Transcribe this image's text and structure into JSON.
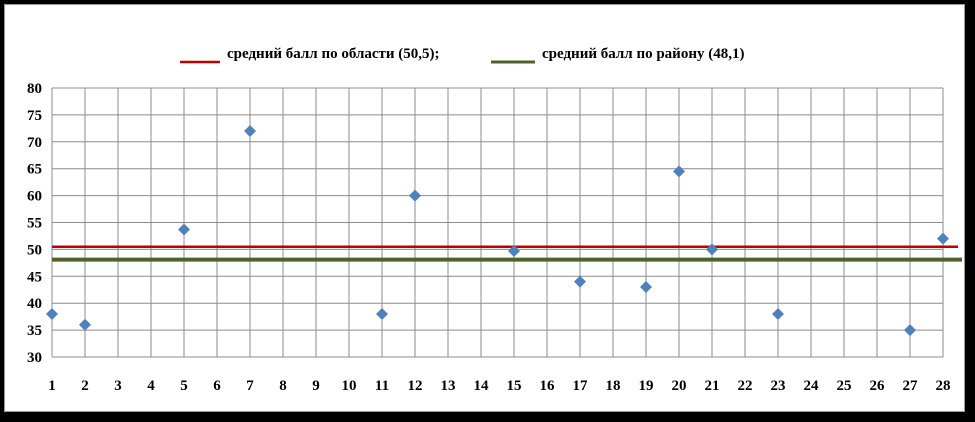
{
  "chart_data": {
    "type": "scatter",
    "title": "",
    "xlabel": "",
    "ylabel": "",
    "x_ticks": [
      1,
      2,
      3,
      4,
      5,
      6,
      7,
      8,
      9,
      10,
      11,
      12,
      13,
      14,
      15,
      16,
      17,
      18,
      19,
      20,
      21,
      22,
      23,
      24,
      25,
      26,
      27,
      28
    ],
    "ylim": [
      30,
      80
    ],
    "y_ticks": [
      30,
      35,
      40,
      45,
      50,
      55,
      60,
      65,
      70,
      75,
      80
    ],
    "grid": true,
    "legend_position": "top",
    "points": [
      {
        "x": 1,
        "y": 38
      },
      {
        "x": 2,
        "y": 36
      },
      {
        "x": 5,
        "y": 53.7
      },
      {
        "x": 7,
        "y": 72
      },
      {
        "x": 11,
        "y": 38
      },
      {
        "x": 12,
        "y": 60
      },
      {
        "x": 15,
        "y": 49.7
      },
      {
        "x": 17,
        "y": 44
      },
      {
        "x": 19,
        "y": 43
      },
      {
        "x": 20,
        "y": 64.5
      },
      {
        "x": 21,
        "y": 50
      },
      {
        "x": 23,
        "y": 38
      },
      {
        "x": 27,
        "y": 35
      },
      {
        "x": 28,
        "y": 52
      }
    ],
    "marker_color": "#4f81bd",
    "reference_lines": [
      {
        "name": "средний балл по области (50,5);",
        "value": 50.5,
        "color": "#c00000"
      },
      {
        "name": "средний балл по району (48,1)",
        "value": 48.1,
        "color": "#4f6228"
      }
    ]
  }
}
